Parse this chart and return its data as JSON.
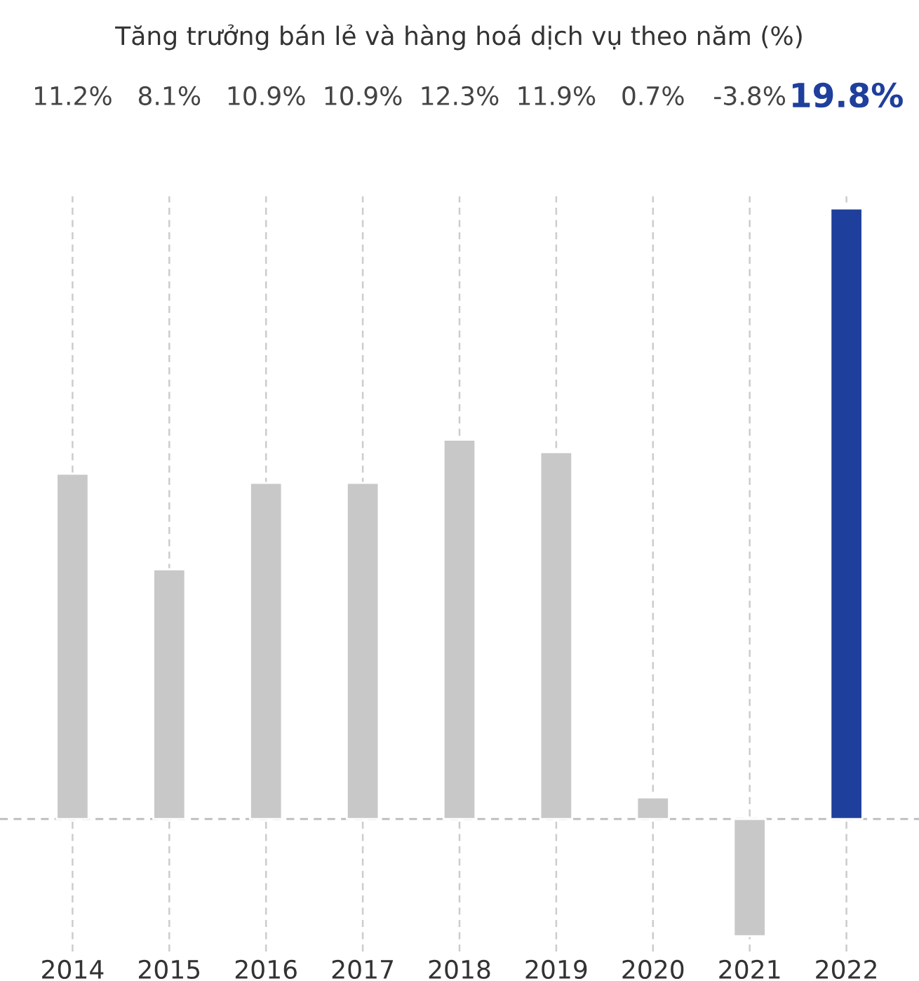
{
  "chart_data": {
    "type": "bar",
    "title": "Tăng trưởng bán lẻ và hàng hoá dịch vụ theo năm (%)",
    "categories": [
      "2014",
      "2015",
      "2016",
      "2017",
      "2018",
      "2019",
      "2020",
      "2021",
      "2022"
    ],
    "values": [
      11.2,
      8.1,
      10.9,
      10.9,
      12.3,
      11.9,
      0.7,
      -3.8,
      19.8
    ],
    "colors": [
      "#c8c8c8",
      "#c8c8c8",
      "#c8c8c8",
      "#c8c8c8",
      "#c8c8c8",
      "#c8c8c8",
      "#c8c8c8",
      "#c8c8c8",
      "#1f3f9c"
    ],
    "value_labels": [
      "11.2%",
      "8.1%",
      "10.9%",
      "10.9%",
      "12.3%",
      "11.9%",
      "0.7%",
      "-3.8%",
      "19.8%"
    ],
    "ylim": [
      -4.3,
      20.2
    ],
    "tick_labels": "x",
    "grid": "x",
    "ref_lines": [
      {
        "axis": "y",
        "value": 0,
        "color": "#bbbbbb",
        "line_style": "dashed"
      }
    ]
  }
}
